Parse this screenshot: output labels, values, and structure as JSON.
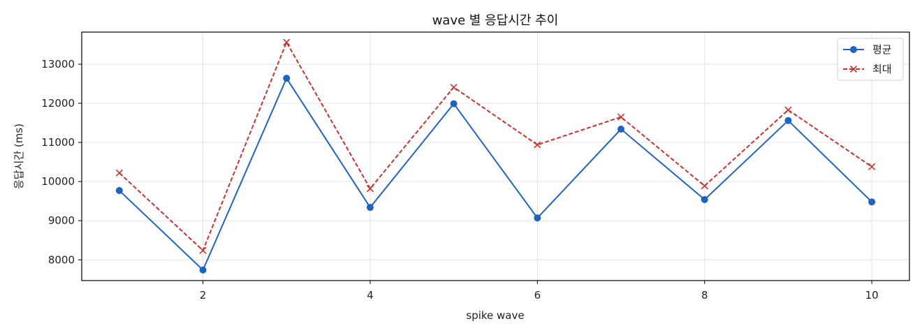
{
  "chart_data": {
    "type": "line",
    "title": "wave 별 응답시간 추이",
    "xlabel": "spike wave",
    "ylabel": "응답시간 (ms)",
    "x": [
      1,
      2,
      3,
      4,
      5,
      6,
      7,
      8,
      9,
      10
    ],
    "xlim": [
      0.55,
      10.45
    ],
    "ylim": [
      7470,
      13820
    ],
    "xticks": [
      2,
      4,
      6,
      8,
      10
    ],
    "yticks": [
      8000,
      9000,
      10000,
      11000,
      12000,
      13000
    ],
    "grid": true,
    "legend_position": "top-right",
    "series": [
      {
        "name": "평균",
        "values": [
          9770,
          7740,
          12640,
          9340,
          11990,
          9070,
          11340,
          9540,
          11560,
          9480
        ],
        "color": "#1f63c0",
        "line_style": "solid",
        "marker": "circle"
      },
      {
        "name": "최대",
        "values": [
          10220,
          8240,
          13560,
          9820,
          12410,
          10940,
          11650,
          9890,
          11830,
          10380
        ],
        "color": "#c8302e",
        "line_style": "dashed",
        "marker": "x"
      }
    ]
  }
}
